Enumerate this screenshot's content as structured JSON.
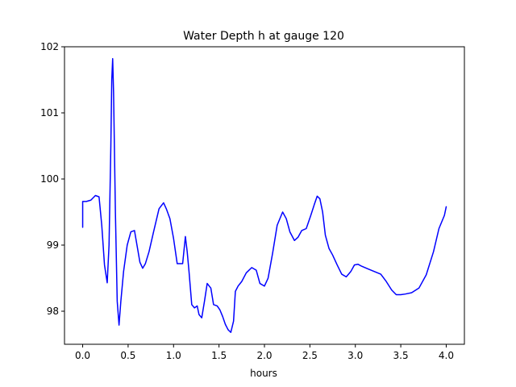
{
  "chart_data": {
    "type": "line",
    "title": "Water Depth h at gauge 120",
    "xlabel": "hours",
    "ylabel": "",
    "xlim": [
      -0.2,
      4.2
    ],
    "ylim": [
      97.5,
      102.0
    ],
    "xticks": [
      0.0,
      0.5,
      1.0,
      1.5,
      2.0,
      2.5,
      3.0,
      3.5,
      4.0
    ],
    "xtick_labels": [
      "0.0",
      "0.5",
      "1.0",
      "1.5",
      "2.0",
      "2.5",
      "3.0",
      "3.5",
      "4.0"
    ],
    "yticks": [
      98,
      99,
      100,
      101,
      102
    ],
    "ytick_labels": [
      "98",
      "99",
      "100",
      "101",
      "102"
    ],
    "grid": false,
    "legend": "none",
    "series": [
      {
        "color": "#0000ff",
        "x": [
          0.0,
          0.0,
          0.04,
          0.09,
          0.14,
          0.18,
          0.21,
          0.24,
          0.27,
          0.29,
          0.31,
          0.32,
          0.33,
          0.34,
          0.36,
          0.38,
          0.4,
          0.42,
          0.45,
          0.49,
          0.53,
          0.57,
          0.6,
          0.63,
          0.66,
          0.69,
          0.73,
          0.78,
          0.84,
          0.89,
          0.92,
          0.96,
          1.0,
          1.04,
          1.07,
          1.1,
          1.13,
          1.15,
          1.17,
          1.2,
          1.23,
          1.26,
          1.28,
          1.31,
          1.34,
          1.37,
          1.41,
          1.44,
          1.48,
          1.51,
          1.54,
          1.57,
          1.6,
          1.63,
          1.66,
          1.68,
          1.71,
          1.75,
          1.8,
          1.86,
          1.91,
          1.95,
          2.0,
          2.04,
          2.09,
          2.14,
          2.2,
          2.24,
          2.28,
          2.33,
          2.37,
          2.41,
          2.46,
          2.51,
          2.55,
          2.58,
          2.61,
          2.64,
          2.67,
          2.71,
          2.75,
          2.8,
          2.85,
          2.9,
          2.95,
          2.99,
          3.03,
          3.07,
          3.14,
          3.21,
          3.28,
          3.34,
          3.4,
          3.45,
          3.5,
          3.55,
          3.62,
          3.7,
          3.78,
          3.86,
          3.92,
          3.98,
          4.0
        ],
        "y": [
          99.27,
          99.66,
          99.66,
          99.68,
          99.75,
          99.73,
          99.3,
          98.7,
          98.43,
          99.0,
          100.5,
          101.5,
          101.82,
          101.3,
          99.5,
          98.15,
          97.79,
          98.15,
          98.6,
          99.0,
          99.2,
          99.22,
          98.98,
          98.74,
          98.65,
          98.72,
          98.9,
          99.2,
          99.55,
          99.64,
          99.55,
          99.4,
          99.1,
          98.72,
          98.72,
          98.72,
          99.13,
          98.9,
          98.6,
          98.1,
          98.05,
          98.08,
          97.95,
          97.9,
          98.15,
          98.42,
          98.35,
          98.1,
          98.08,
          98.02,
          97.92,
          97.8,
          97.72,
          97.68,
          97.85,
          98.3,
          98.38,
          98.45,
          98.58,
          98.66,
          98.62,
          98.42,
          98.38,
          98.5,
          98.88,
          99.3,
          99.5,
          99.4,
          99.2,
          99.07,
          99.12,
          99.22,
          99.25,
          99.45,
          99.62,
          99.74,
          99.7,
          99.5,
          99.15,
          98.95,
          98.85,
          98.7,
          98.56,
          98.52,
          98.6,
          98.7,
          98.71,
          98.68,
          98.64,
          98.6,
          98.56,
          98.45,
          98.32,
          98.25,
          98.25,
          98.26,
          98.28,
          98.35,
          98.55,
          98.9,
          99.25,
          99.45,
          99.58
        ]
      }
    ]
  }
}
